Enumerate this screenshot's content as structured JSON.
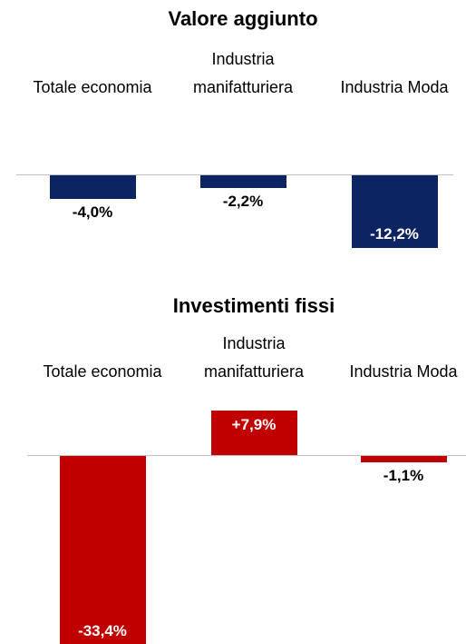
{
  "chart_data": [
    {
      "type": "bar",
      "title": "Valore aggiunto",
      "categories": [
        "Totale economia",
        "Industria manifatturiera",
        "Industria Moda"
      ],
      "values": [
        -4.0,
        -2.2,
        -12.2
      ],
      "value_labels": [
        "-4,0%",
        "-2,2%",
        "-12,2%"
      ],
      "color": "#0c2461"
    },
    {
      "type": "bar",
      "title": "Investimenti fissi",
      "categories": [
        "Totale economia",
        "Industria manifatturiera",
        "Industria Moda"
      ],
      "values": [
        -33.4,
        7.9,
        -1.1
      ],
      "value_labels": [
        "-33,4%",
        "+7,9%",
        "-1,1%"
      ],
      "color": "#c00000"
    }
  ]
}
